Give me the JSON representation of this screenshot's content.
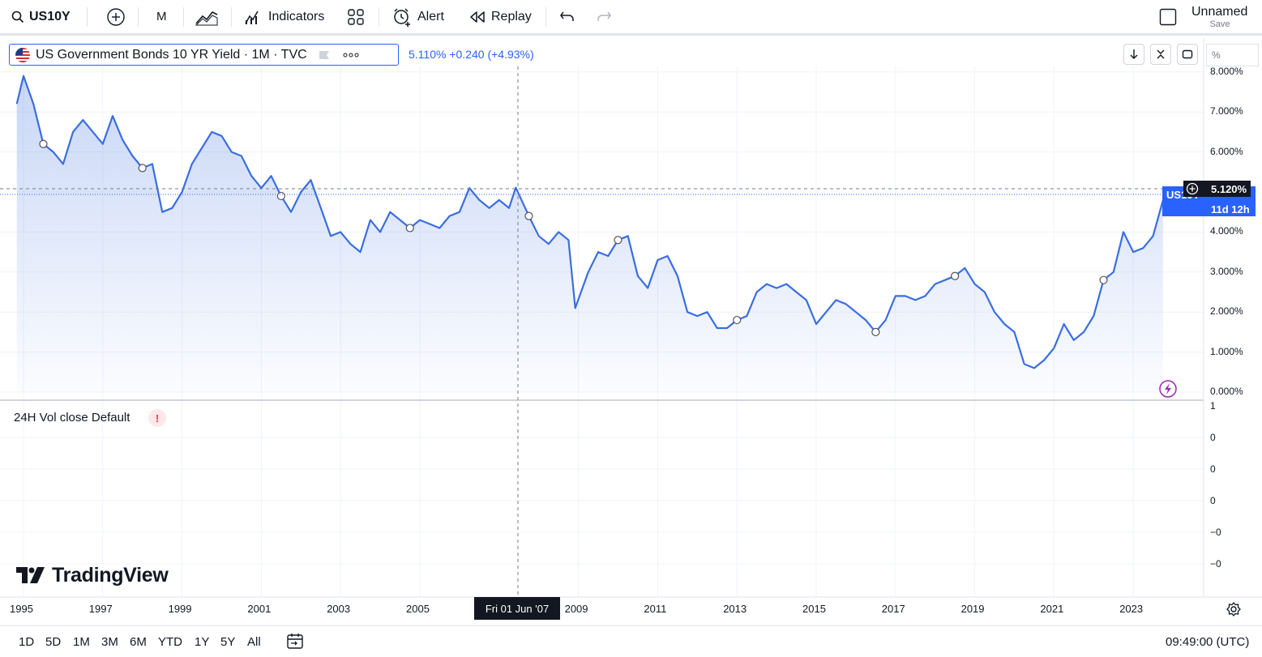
{
  "toolbar": {
    "symbol": "US10Y",
    "interval": "M",
    "indicators_label": "Indicators",
    "alert_label": "Alert",
    "replay_label": "Replay",
    "layout_name": "Unnamed",
    "save_label": "Save"
  },
  "legend": {
    "title": "US Government Bonds 10 YR Yield · 1M · TVC",
    "last": "5.110%",
    "change": "+0.240 (+4.93%)"
  },
  "scale_mode": "%",
  "price_scale": [
    "8.000%",
    "7.000%",
    "6.000%",
    "5.000%",
    "4.000%",
    "3.000%",
    "2.000%",
    "1.000%",
    "0.000%"
  ],
  "price_tag": {
    "value": "5.120%",
    "countdown": "11d 12h",
    "label": "US10Y"
  },
  "volume": {
    "legend": "24H Vol close Default",
    "warning": "!",
    "scale": [
      "1",
      "0",
      "0",
      "0",
      "−0",
      "−0"
    ]
  },
  "time_axis": [
    "1995",
    "1997",
    "1999",
    "2001",
    "2003",
    "2005",
    "2009",
    "2011",
    "2013",
    "2015",
    "2017",
    "2019",
    "2021",
    "2023"
  ],
  "crosshair_date": "Fri 01 Jun '07",
  "brand": "TradingView",
  "bottom": {
    "ranges": [
      "1D",
      "5D",
      "1M",
      "3M",
      "6M",
      "YTD",
      "1Y",
      "5Y",
      "All"
    ],
    "clock": "09:49:00 (UTC)"
  },
  "colors": {
    "line": "#3a6ee0",
    "accent": "#2962ff",
    "dark": "#131722"
  },
  "chart_data": {
    "type": "area",
    "title": "US Government Bonds 10 YR Yield · 1M · TVC",
    "x_unit": "year",
    "y_unit": "%",
    "ylim": [
      0,
      8
    ],
    "x": [
      1994.83,
      1995.0,
      1995.25,
      1995.5,
      1995.75,
      1996.0,
      1996.25,
      1996.5,
      1996.75,
      1997.0,
      1997.25,
      1997.5,
      1997.75,
      1998.0,
      1998.25,
      1998.5,
      1998.75,
      1999.0,
      1999.25,
      1999.5,
      1999.75,
      2000.0,
      2000.25,
      2000.5,
      2000.75,
      2001.0,
      2001.25,
      2001.5,
      2001.75,
      2002.0,
      2002.25,
      2002.5,
      2002.75,
      2003.0,
      2003.25,
      2003.5,
      2003.75,
      2004.0,
      2004.25,
      2004.5,
      2004.75,
      2005.0,
      2005.25,
      2005.5,
      2005.75,
      2006.0,
      2006.25,
      2006.5,
      2006.75,
      2007.0,
      2007.25,
      2007.42,
      2007.75,
      2008.0,
      2008.25,
      2008.5,
      2008.75,
      2008.92,
      2009.25,
      2009.5,
      2009.75,
      2010.0,
      2010.25,
      2010.5,
      2010.75,
      2011.0,
      2011.25,
      2011.5,
      2011.75,
      2012.0,
      2012.25,
      2012.5,
      2012.75,
      2013.0,
      2013.25,
      2013.5,
      2013.75,
      2014.0,
      2014.25,
      2014.5,
      2014.75,
      2015.0,
      2015.25,
      2015.5,
      2015.75,
      2016.0,
      2016.25,
      2016.5,
      2016.75,
      2017.0,
      2017.25,
      2017.5,
      2017.75,
      2018.0,
      2018.25,
      2018.5,
      2018.75,
      2019.0,
      2019.25,
      2019.5,
      2019.75,
      2020.0,
      2020.25,
      2020.5,
      2020.75,
      2021.0,
      2021.25,
      2021.5,
      2021.75,
      2022.0,
      2022.25,
      2022.5,
      2022.75,
      2023.0,
      2023.25,
      2023.5,
      2023.75
    ],
    "y": [
      7.2,
      7.9,
      7.2,
      6.2,
      6.0,
      5.7,
      6.5,
      6.8,
      6.5,
      6.2,
      6.9,
      6.3,
      5.9,
      5.6,
      5.7,
      4.5,
      4.6,
      5.0,
      5.7,
      6.1,
      6.5,
      6.4,
      6.0,
      5.9,
      5.4,
      5.1,
      5.4,
      4.9,
      4.5,
      5.0,
      5.3,
      4.6,
      3.9,
      4.0,
      3.7,
      3.5,
      4.3,
      4.0,
      4.5,
      4.3,
      4.1,
      4.3,
      4.2,
      4.1,
      4.4,
      4.5,
      5.1,
      4.8,
      4.6,
      4.8,
      4.6,
      5.11,
      4.4,
      3.9,
      3.7,
      4.0,
      3.8,
      2.1,
      3.0,
      3.5,
      3.4,
      3.8,
      3.9,
      2.9,
      2.6,
      3.3,
      3.4,
      2.9,
      2.0,
      1.9,
      2.0,
      1.6,
      1.6,
      1.8,
      1.9,
      2.5,
      2.7,
      2.6,
      2.7,
      2.5,
      2.3,
      1.7,
      2.0,
      2.3,
      2.2,
      2.0,
      1.8,
      1.5,
      1.8,
      2.4,
      2.4,
      2.3,
      2.4,
      2.7,
      2.8,
      2.9,
      3.1,
      2.7,
      2.5,
      2.0,
      1.7,
      1.5,
      0.7,
      0.6,
      0.8,
      1.1,
      1.7,
      1.3,
      1.5,
      1.9,
      2.8,
      3.0,
      4.0,
      3.5,
      3.6,
      3.9,
      4.8
    ]
  }
}
